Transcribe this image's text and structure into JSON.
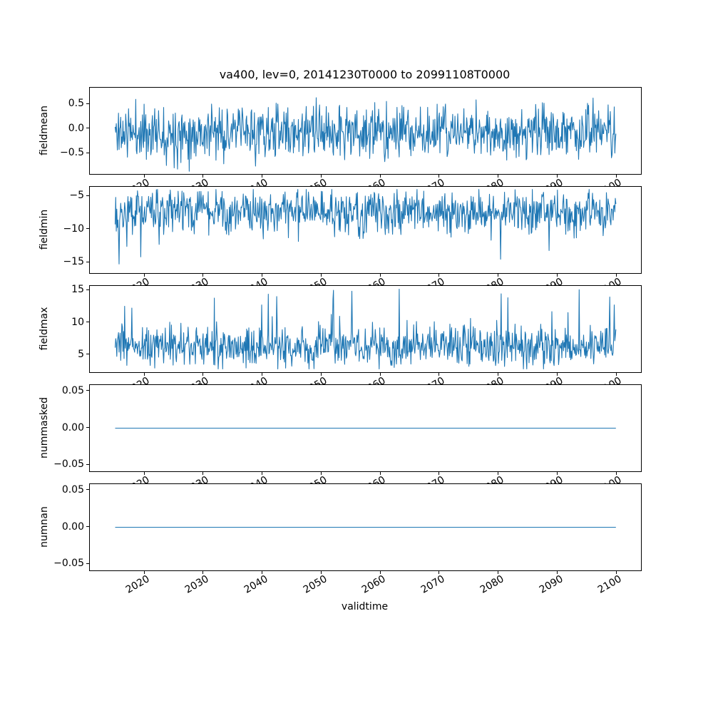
{
  "chart_data": {
    "type": "line",
    "title": "va400, lev=0, 20141230T0000 to 20991108T0000",
    "xlabel": "validtime",
    "line_color": "#1f77b4",
    "grid": false,
    "legend": "none",
    "x": {
      "start": 2014.99,
      "end": 2099.85,
      "xlim": [
        2010.7,
        2104.1
      ],
      "ticks": [
        2020,
        2030,
        2040,
        2050,
        2060,
        2070,
        2080,
        2090,
        2100
      ],
      "tick_labels": [
        "2020",
        "2030",
        "2040",
        "2050",
        "2060",
        "2070",
        "2080",
        "2090",
        "2100"
      ]
    },
    "subplots": [
      {
        "ylabel": "fieldmean",
        "ylim": [
          -0.92,
          0.84
        ],
        "yticks": [
          0.5,
          0.0,
          -0.5
        ],
        "ytick_labels": [
          "0.5",
          "0.0",
          "−0.5"
        ],
        "series": {
          "kind": "noise",
          "mean": -0.07,
          "std": 0.27,
          "min": -0.9,
          "max": 0.8,
          "n": 900,
          "seed": 11
        }
      },
      {
        "ylabel": "fieldmin",
        "ylim": [
          -16.6,
          -3.6
        ],
        "yticks": [
          -5,
          -10,
          -15
        ],
        "ytick_labels": [
          "−5",
          "−10",
          "−15"
        ],
        "series": {
          "kind": "noise",
          "mean": -7.3,
          "std": 1.6,
          "min": -16.2,
          "max": -4.0,
          "n": 900,
          "seed": 22,
          "spike_prob": 0.012,
          "spike_sign": -1,
          "spike_extra": 7
        }
      },
      {
        "ylabel": "fieldmax",
        "ylim": [
          2.3,
          15.7
        ],
        "yticks": [
          15,
          10,
          5
        ],
        "ytick_labels": [
          "15",
          "10",
          "5"
        ],
        "series": {
          "kind": "noise",
          "mean": 6.3,
          "std": 1.5,
          "min": 2.8,
          "max": 15.2,
          "n": 900,
          "seed": 33,
          "spike_prob": 0.035,
          "spike_sign": 1,
          "spike_extra": 6.5
        }
      },
      {
        "ylabel": "nummasked",
        "ylim": [
          -0.0585,
          0.0585
        ],
        "yticks": [
          0.05,
          0.0,
          -0.05
        ],
        "ytick_labels": [
          "0.05",
          "0.00",
          "−0.05"
        ],
        "series": {
          "kind": "constant",
          "value": 0.0
        }
      },
      {
        "ylabel": "numnan",
        "ylim": [
          -0.0585,
          0.0585
        ],
        "yticks": [
          0.05,
          0.0,
          -0.05
        ],
        "ytick_labels": [
          "0.05",
          "0.00",
          "−0.05"
        ],
        "series": {
          "kind": "constant",
          "value": 0.0
        }
      }
    ]
  }
}
